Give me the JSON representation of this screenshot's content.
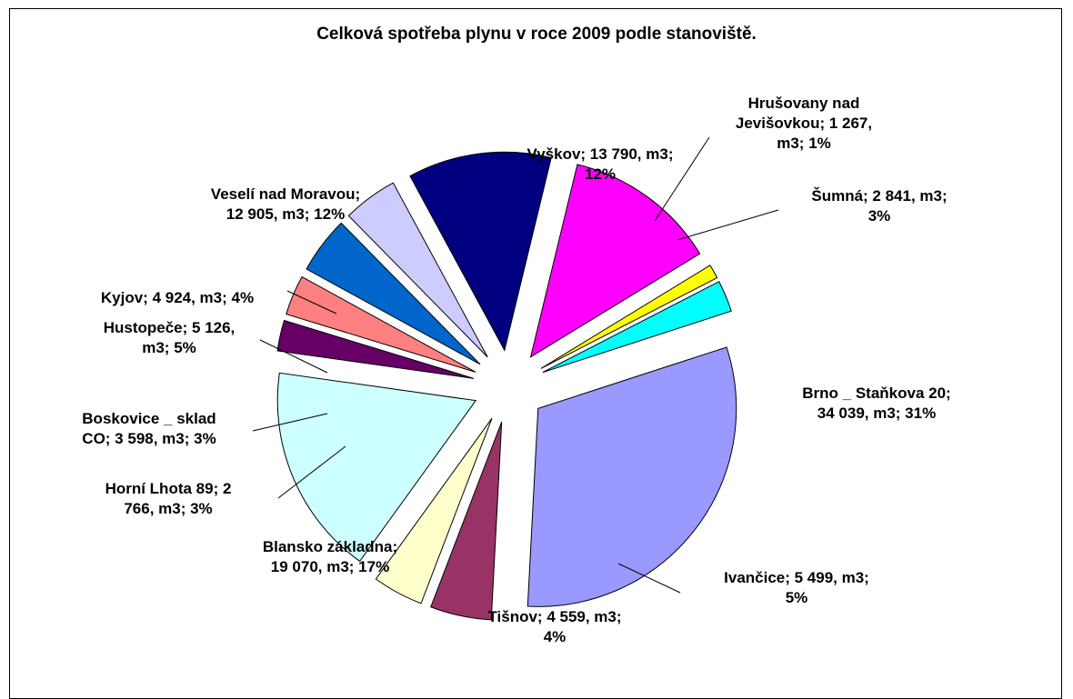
{
  "chart_data": {
    "type": "pie",
    "title": "Celková spotřeba plynu  v roce 2009 podle stanoviště.",
    "unit": "m3",
    "slices": [
      {
        "name": "Brno _ Staňkova 20",
        "value": 34039,
        "percent": 31,
        "color": "#9999FF",
        "label": [
          "Brno _ Staňkova 20;",
          "34 039, m3; 31%"
        ]
      },
      {
        "name": "Ivančice",
        "value": 5499,
        "percent": 5,
        "color": "#993366",
        "label": [
          "Ivančice; 5 499, m3;",
          "5%"
        ]
      },
      {
        "name": "Tišnov",
        "value": 4559,
        "percent": 4,
        "color": "#FFFFCC",
        "label": [
          "Tišnov; 4 559, m3;",
          "4%"
        ]
      },
      {
        "name": "Blansko základna",
        "value": 19070,
        "percent": 17,
        "color": "#CCFFFF",
        "label": [
          "Blansko základna;",
          "19 070, m3; 17%"
        ]
      },
      {
        "name": "Horní Lhota 89",
        "value": 2766,
        "percent": 3,
        "color": "#660066",
        "label": [
          "Horní Lhota 89; 2",
          "766, m3; 3%"
        ]
      },
      {
        "name": "Boskovice _ sklad CO",
        "value": 3598,
        "percent": 3,
        "color": "#FF8080",
        "label": [
          "Boskovice _ sklad",
          "CO; 3 598, m3; 3%"
        ]
      },
      {
        "name": "Hustopeče",
        "value": 5126,
        "percent": 5,
        "color": "#0066CC",
        "label": [
          "Hustopeče; 5 126,",
          "m3; 5%"
        ]
      },
      {
        "name": "Kyjov",
        "value": 4924,
        "percent": 4,
        "color": "#CCCCFF",
        "label": [
          "Kyjov; 4 924, m3; 4%"
        ]
      },
      {
        "name": "Veselí nad Moravou",
        "value": 12905,
        "percent": 12,
        "color": "#000080",
        "label": [
          "Veselí nad Moravou;",
          "12 905, m3; 12%"
        ]
      },
      {
        "name": "Vyškov",
        "value": 13790,
        "percent": 12,
        "color": "#FF00FF",
        "label": [
          "Vyškov; 13 790, m3;",
          "12%"
        ]
      },
      {
        "name": "Hrušovany nad Jevišovkou",
        "value": 1267,
        "percent": 1,
        "color": "#FFFF00",
        "label": [
          "Hrušovany nad",
          "Jevišovkou; 1 267,",
          "m3; 1%"
        ]
      },
      {
        "name": "Šumná",
        "value": 2841,
        "percent": 3,
        "color": "#00FFFF",
        "label": [
          "Šumná; 2 841, m3;",
          "3%"
        ]
      }
    ]
  }
}
